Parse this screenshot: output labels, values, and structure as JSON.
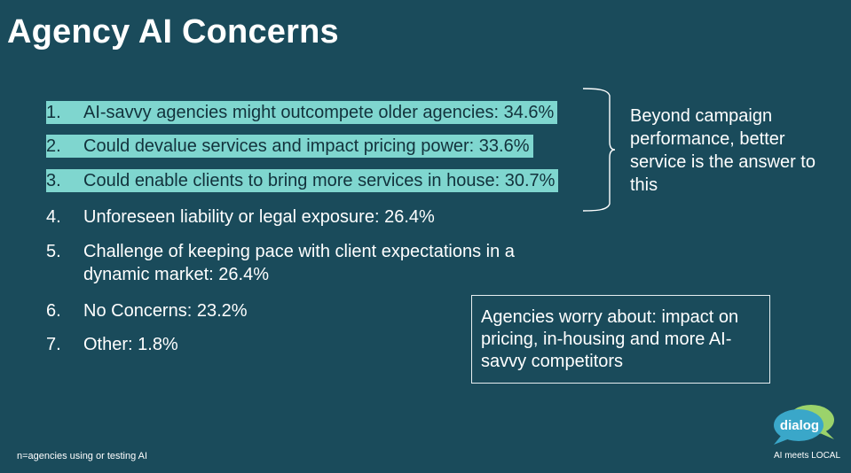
{
  "slide": {
    "title": "Agency AI Concerns",
    "items": [
      {
        "num": "1.",
        "text": "AI-savvy agencies might outcompete older agencies: 34.6%"
      },
      {
        "num": "2.",
        "text": "Could devalue services and impact pricing power: 33.6%"
      },
      {
        "num": "3.",
        "text": "Could enable clients to bring more services in house: 30.7%"
      },
      {
        "num": "4.",
        "text": "Unforeseen liability or legal exposure: 26.4%"
      },
      {
        "num": "5.",
        "text": "Challenge of keeping pace with client expectations in a dynamic market: 26.4%"
      },
      {
        "num": "6.",
        "text": "No Concerns: 23.2%"
      },
      {
        "num": "7.",
        "text": "Other: 1.8%"
      }
    ],
    "side_note": "Beyond campaign performance, better service is the answer to this",
    "callout": "Agencies worry about: impact on pricing, in-housing and more AI-savvy competitors",
    "footnote": "n=agencies using or testing AI"
  },
  "logo": {
    "name": "dialog-logo",
    "word": "dialog",
    "tagline": "AI meets LOCAL",
    "colors": {
      "bubble_back": "#9bd36b",
      "bubble_front": "#3aa7c9",
      "text": "#ffffff"
    }
  },
  "colors": {
    "background": "#1a4b5b",
    "highlight": "#7fd6cf",
    "highlight_text": "#12323c",
    "text": "#ffffff"
  }
}
